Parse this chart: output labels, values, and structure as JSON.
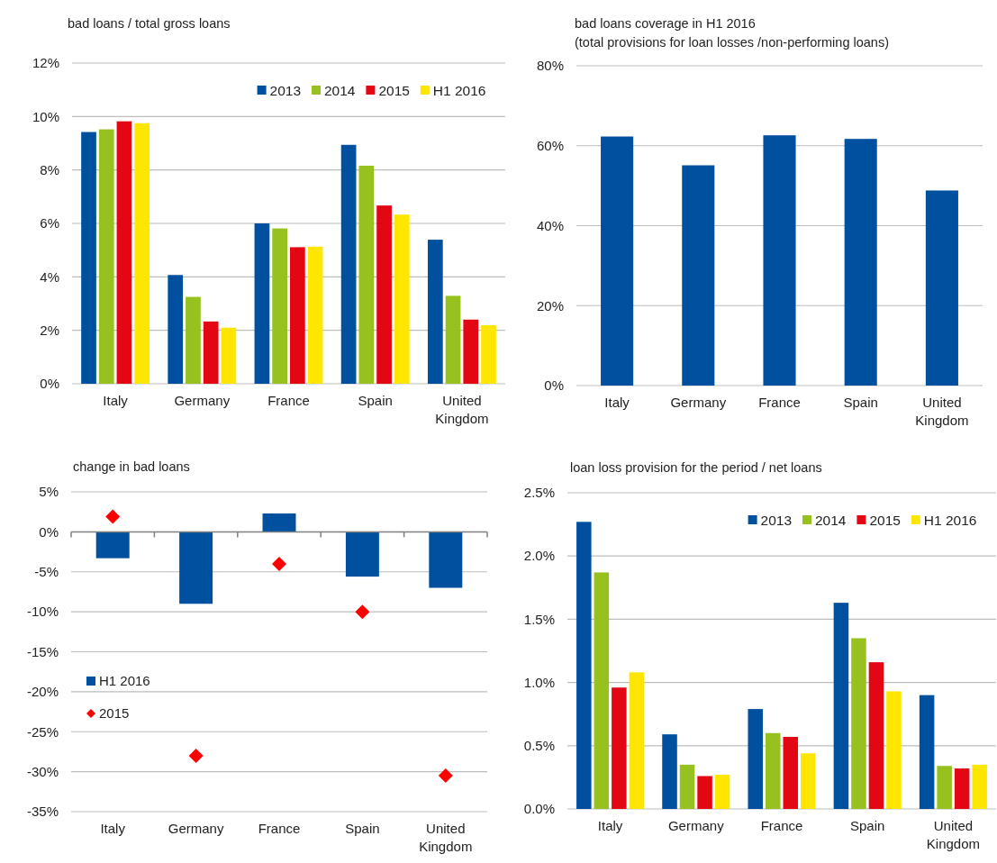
{
  "chart_data": [
    {
      "type": "bar",
      "title": "bad loans / total gross loans",
      "categories": [
        "Italy",
        "Germany",
        "France",
        "Spain",
        "United Kingdom"
      ],
      "series": [
        {
          "name": "2013",
          "color": "#0050a0",
          "values": [
            9.42,
            4.07,
            6.0,
            8.94,
            5.39
          ]
        },
        {
          "name": "2014",
          "color": "#96c11f",
          "values": [
            9.52,
            3.25,
            5.81,
            8.16,
            3.29
          ]
        },
        {
          "name": "2015",
          "color": "#e30613",
          "values": [
            9.82,
            2.33,
            5.11,
            6.67,
            2.4
          ]
        },
        {
          "name": "H1 2016",
          "color": "#ffe600",
          "values": [
            9.75,
            2.1,
            5.13,
            6.33,
            2.19
          ]
        }
      ],
      "ylim": [
        0,
        12
      ],
      "yticks": [
        {
          "value": 0,
          "label": "0%"
        },
        {
          "value": 2,
          "label": "2%"
        },
        {
          "value": 4,
          "label": "4%"
        },
        {
          "value": 6,
          "label": "6%"
        },
        {
          "value": 8,
          "label": "8%"
        },
        {
          "value": 10,
          "label": "10%"
        },
        {
          "value": 12,
          "label": "12%"
        }
      ],
      "grid": "y",
      "legend": "top right"
    },
    {
      "type": "bar",
      "title": "bad loans coverage in H1 2016",
      "subtitle": "(total provisions for loan losses /non-performing loans)",
      "categories": [
        "Italy",
        "Germany",
        "France",
        "Spain",
        "United Kingdom"
      ],
      "values": [
        62.3,
        55.1,
        62.6,
        61.7,
        48.8
      ],
      "color": "#0050a0",
      "ylim": [
        0,
        80
      ],
      "yticks": [
        {
          "value": 0,
          "label": "0%"
        },
        {
          "value": 20,
          "label": "20%"
        },
        {
          "value": 40,
          "label": "40%"
        },
        {
          "value": 60,
          "label": "60%"
        },
        {
          "value": 80,
          "label": "80%"
        }
      ],
      "grid": "y"
    },
    {
      "type": "bar",
      "title": "change in bad loans",
      "categories": [
        "Italy",
        "Germany",
        "France",
        "Spain",
        "United Kingdom"
      ],
      "series": [
        {
          "name": "H1 2016",
          "color": "#0050a0",
          "values": [
            -3.3,
            -9,
            2.3,
            -5.6,
            -7
          ]
        },
        {
          "name": "2015",
          "type": "scatter",
          "marker": "diamond",
          "color": "#ff0000",
          "values": [
            1.9,
            -28,
            -4,
            -10,
            -30.5
          ]
        }
      ],
      "ylim": [
        -35,
        5
      ],
      "yticks": [
        {
          "value": -35,
          "label": "-35%"
        },
        {
          "value": -30,
          "label": "-30%"
        },
        {
          "value": -25,
          "label": "-25%"
        },
        {
          "value": -20,
          "label": "-20%"
        },
        {
          "value": -15,
          "label": "-15%"
        },
        {
          "value": -10,
          "label": "-10%"
        },
        {
          "value": -5,
          "label": "-5%"
        },
        {
          "value": 0,
          "label": "0%"
        },
        {
          "value": 5,
          "label": "5%"
        }
      ],
      "grid": "y",
      "legend": "left"
    },
    {
      "type": "bar",
      "title": "loan loss provision for the period / net loans",
      "categories": [
        "Italy",
        "Germany",
        "France",
        "Spain",
        "United Kingdom"
      ],
      "series": [
        {
          "name": "2013",
          "color": "#0050a0",
          "values": [
            2.27,
            0.59,
            0.79,
            1.63,
            0.9
          ]
        },
        {
          "name": "2014",
          "color": "#96c11f",
          "values": [
            1.87,
            0.35,
            0.6,
            1.35,
            0.34
          ]
        },
        {
          "name": "2015",
          "color": "#e30613",
          "values": [
            0.96,
            0.26,
            0.57,
            1.16,
            0.32
          ]
        },
        {
          "name": "H1 2016",
          "color": "#ffe600",
          "values": [
            1.08,
            0.27,
            0.44,
            0.93,
            0.35
          ]
        }
      ],
      "ylim": [
        0,
        2.5
      ],
      "yticks": [
        {
          "value": 0,
          "label": "0.0%"
        },
        {
          "value": 0.5,
          "label": "0.5%"
        },
        {
          "value": 1,
          "label": "1.0%"
        },
        {
          "value": 1.5,
          "label": "1.5%"
        },
        {
          "value": 2,
          "label": "2.0%"
        },
        {
          "value": 2.5,
          "label": "2.5%"
        }
      ],
      "grid": "y",
      "legend": "top right"
    }
  ]
}
